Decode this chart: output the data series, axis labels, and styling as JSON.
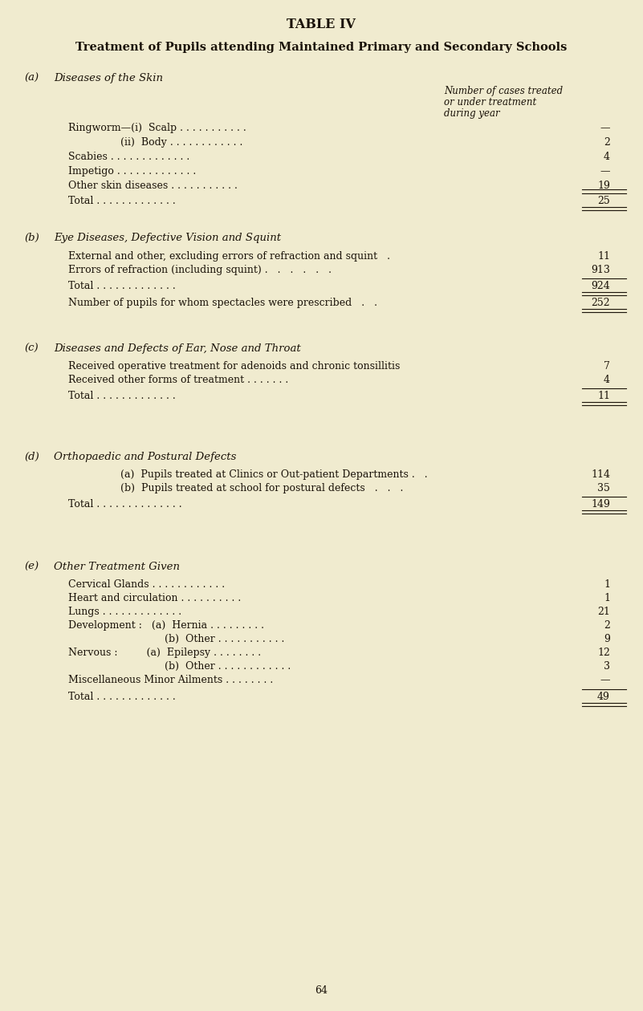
{
  "title1": "TABLE IV",
  "title2": "Treatment of Pupils attending Maintained Primary and Secondary Schools",
  "bg_color": "#f0ebcf",
  "text_color": "#1a1208",
  "page_number": "64",
  "col_header_lines": [
    "Number of cases treated",
    "or under treatment",
    "during year"
  ],
  "sections": {
    "a_heading_label": "(a)",
    "a_heading": "Diseases of the Skin",
    "b_heading_label": "(b)",
    "b_heading": "Eye Diseases, Defective Vision and Squint",
    "c_heading_label": "(c)",
    "c_heading": "Diseases and Defects of Ear, Nose and Throat",
    "d_heading_label": "(d)",
    "d_heading": "Orthopaedic and Postural Defects",
    "e_heading_label": "(e)",
    "e_heading": "Other Treatment Given"
  },
  "row_a": [
    [
      "Ringworm—(i)  Scalp . . . . . . . . . . .",
      "—",
      1,
      false
    ],
    [
      "(ii)  Body . . . . . . . . . . . .",
      "2",
      2,
      false
    ],
    [
      "Scabies . . . . . . . . . . . . .",
      "4",
      1,
      false
    ],
    [
      "Impetigo . . . . . . . . . . . . .",
      "—",
      1,
      false
    ],
    [
      "Other skin diseases . . . . . . . . . . .",
      "19",
      1,
      false
    ],
    [
      "Total . . . . . . . . . . . . .",
      "25",
      1,
      true
    ]
  ],
  "row_b": [
    [
      "External and other, excluding errors of refraction and squint   .",
      "11",
      1,
      false
    ],
    [
      "Errors of refraction (including squint) .   .   .   .   .   .",
      "913",
      1,
      false
    ],
    [
      "Total . . . . . . . . . . . . .",
      "924",
      1,
      true
    ],
    [
      "Number of pupils for whom spectacles were prescribed   .   .",
      "252",
      1,
      true
    ]
  ],
  "row_c": [
    [
      "Received operative treatment for adenoids and chronic tonsillitis",
      "7",
      1,
      false
    ],
    [
      "Received other forms of treatment . . . . . . .",
      "4",
      1,
      false
    ],
    [
      "Total . . . . . . . . . . . . .",
      "11",
      1,
      true
    ]
  ],
  "row_d": [
    [
      "(a)  Pupils treated at Clinics or Out-patient Departments .   .",
      "114",
      2,
      false
    ],
    [
      "(b)  Pupils treated at school for postural defects   .   .   .",
      "35",
      2,
      false
    ],
    [
      "Total . . . . . . . . . . . . . .",
      "149",
      1,
      true
    ]
  ],
  "row_e": [
    [
      "Cervical Glands . . . . . . . . . . . .",
      "1",
      1,
      false
    ],
    [
      "Heart and circulation . . . . . . . . . .",
      "1",
      1,
      false
    ],
    [
      "Lungs . . . . . . . . . . . . .",
      "21",
      1,
      false
    ],
    [
      "Development :   (a)  Hernia . . . . . . . . .",
      "2",
      1,
      false
    ],
    [
      "(b)  Other . . . . . . . . . . .",
      "9",
      3,
      false
    ],
    [
      "Nervous :         (a)  Epilepsy . . . . . . . .",
      "12",
      1,
      false
    ],
    [
      "(b)  Other . . . . . . . . . . . .",
      "3",
      3,
      false
    ],
    [
      "Miscellaneous Minor Ailments . . . . . . . .",
      "—",
      1,
      false
    ],
    [
      "Total . . . . . . . . . . . . .",
      "49",
      1,
      true
    ]
  ]
}
